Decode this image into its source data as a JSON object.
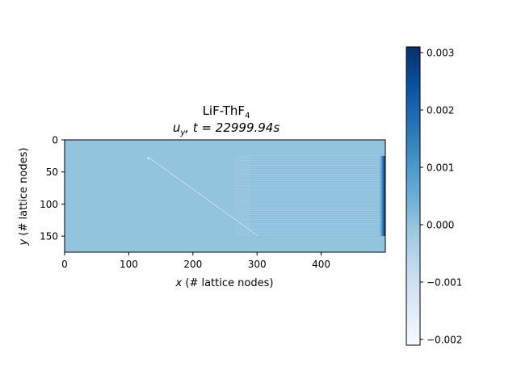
{
  "chart_data": {
    "type": "heatmap",
    "title_main": "LiF-ThF",
    "title_main_sub": "4",
    "title_var": "u",
    "title_var_sub": "y",
    "title_time": ", t = 22999.94s",
    "xlabel_var": "x",
    "xlabel_rest": " (# lattice nodes)",
    "ylabel_var": "y",
    "ylabel_rest": " (# lattice nodes)",
    "xlim": [
      0,
      500
    ],
    "ylim": [
      0,
      175
    ],
    "y_inverted": true,
    "xticks": [
      0,
      100,
      200,
      300,
      400
    ],
    "yticks": [
      0,
      50,
      100,
      150
    ],
    "colorbar": {
      "colormap": "Blues",
      "vmin": -0.0021,
      "vmax": 0.0031,
      "ticks": [
        0.003,
        0.002,
        0.001,
        0.0,
        -0.001,
        -0.002
      ],
      "tick_labels": [
        "0.003",
        "0.002",
        "0.001",
        "0.000",
        "−0.001",
        "−0.002"
      ]
    },
    "field_features": {
      "background_value": 0.0,
      "diagonal_wave": {
        "start": [
          130,
          28
        ],
        "end": [
          300,
          150
        ]
      },
      "fringe_region": {
        "x_range": [
          265,
          495
        ],
        "y_range": [
          25,
          150
        ]
      },
      "right_edge_max_value": 0.0031
    }
  }
}
